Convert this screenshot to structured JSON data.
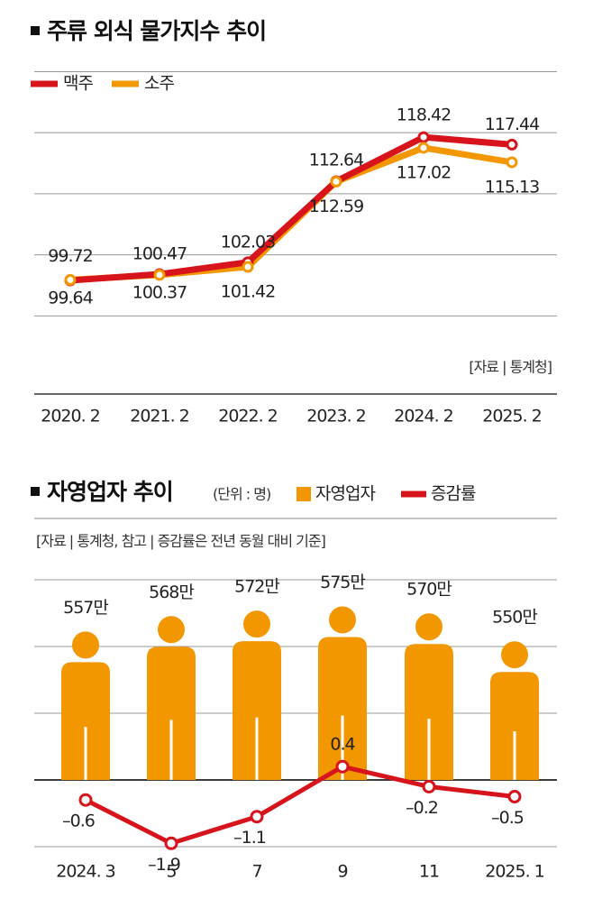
{
  "chart_data": [
    {
      "type": "line",
      "title": "주류 외식 물가지수 추이",
      "source": "[자료 | 통계청]",
      "categories": [
        "2020. 2",
        "2021. 2",
        "2022. 2",
        "2023. 2",
        "2024. 2",
        "2025. 2"
      ],
      "series": [
        {
          "name": "맥주",
          "color": "#d7131b",
          "values": [
            99.64,
            100.47,
            102.03,
            112.64,
            118.42,
            117.44
          ]
        },
        {
          "name": "소주",
          "color": "#f29700",
          "values": [
            99.72,
            100.37,
            101.42,
            112.59,
            117.02,
            115.13
          ]
        }
      ],
      "ylim": [
        85,
        128
      ],
      "yticks": [
        95,
        103,
        111,
        119,
        127
      ],
      "grid": true
    },
    {
      "type": "bar",
      "title": "자영업자 추이",
      "unit": "(단위 : 명)",
      "source": "[자료 | 통계청, 참고 | 증감률은 전년 동월 대비 기준]",
      "categories": [
        "2024. 3",
        "5",
        "7",
        "9",
        "11",
        "2025. 1"
      ],
      "series": [
        {
          "name": "자영업자",
          "color": "#f29700",
          "values": [
            5570000,
            5680000,
            5720000,
            5750000,
            5700000,
            5500000
          ],
          "value_labels": [
            "557만",
            "568만",
            "572만",
            "575만",
            "570만",
            "550만"
          ]
        },
        {
          "name": "증감률",
          "type": "line",
          "axis": "y2",
          "color": "#d7131b",
          "values": [
            -0.6,
            -1.9,
            -1.1,
            0.4,
            -0.2,
            -0.5
          ],
          "value_labels": [
            "–0.6",
            "–1.9",
            "–1.1",
            "0.4",
            "–0.2",
            "–0.5"
          ]
        }
      ],
      "ylim": [
        4030000,
        5940000
      ],
      "y2lim": [
        -2,
        6
      ],
      "y2ticks": [
        -2,
        0,
        2,
        4,
        6
      ],
      "grid": true
    }
  ]
}
